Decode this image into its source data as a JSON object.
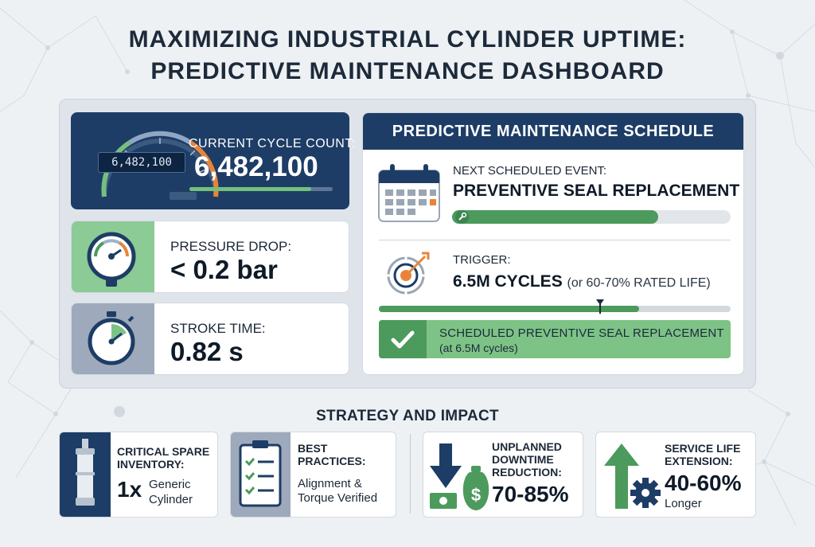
{
  "title": {
    "line1": "MAXIMIZING INDUSTRIAL CYLINDER UPTIME:",
    "line2": "PREDICTIVE MAINTENANCE DASHBOARD"
  },
  "cycle": {
    "label": "CURRENT CYCLE COUNT:",
    "value": "6,482,100",
    "odometer": "6,482,100",
    "progress_fraction": 0.85
  },
  "pressure": {
    "label": "PRESSURE DROP:",
    "value": "< 0.2 bar",
    "icon": "pressure-gauge-icon"
  },
  "stroke": {
    "label": "STROKE TIME:",
    "value": "0.82 s",
    "icon": "stopwatch-icon"
  },
  "schedule": {
    "header": "PREDICTIVE MAINTENANCE SCHEDULE",
    "next_label": "NEXT SCHEDULED EVENT:",
    "next_value": "PREVENTIVE SEAL REPLACEMENT",
    "next_progress_fraction": 0.74,
    "trigger_label": "TRIGGER:",
    "trigger_value": "6.5M CYCLES",
    "trigger_note": "(or 60-70% RATED LIFE)",
    "life_fill_fraction": 0.74,
    "life_marker_fraction": 0.63,
    "banner_title": "SCHEDULED PREVENTIVE SEAL REPLACEMENT",
    "banner_sub": "(at 6.5M cycles)"
  },
  "strategy": {
    "title": "STRATEGY AND IMPACT",
    "spare_label_1": "CRITICAL SPARE",
    "spare_label_2": "INVENTORY:",
    "spare_qty": "1x",
    "spare_text_1": "Generic",
    "spare_text_2": "Cylinder",
    "best_label_1": "BEST",
    "best_label_2": "PRACTICES:",
    "best_text_1": "Alignment &",
    "best_text_2": "Torque Verified",
    "downtime_label_1": "UNPLANNED",
    "downtime_label_2": "DOWNTIME",
    "downtime_label_3": "REDUCTION:",
    "downtime_value": "70-85%",
    "life_label_1": "SERVICE LIFE",
    "life_label_2": "EXTENSION:",
    "life_value": "40-60%",
    "life_text": "Longer"
  },
  "colors": {
    "navy": "#1d3d66",
    "green": "#4c9a5c",
    "light_green": "#7ec386",
    "orange": "#e8843a",
    "background": "#eef1f4"
  }
}
